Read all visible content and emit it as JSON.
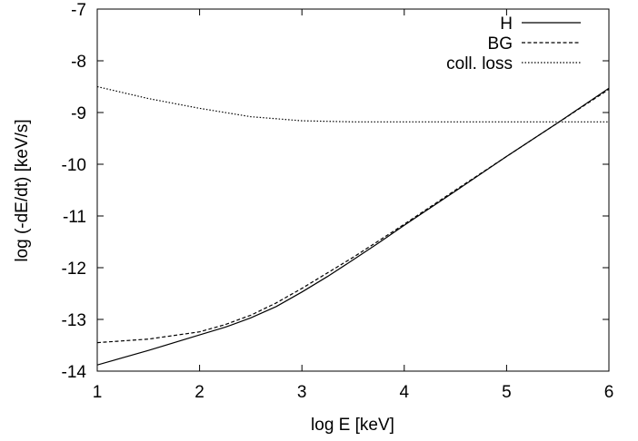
{
  "chart_data": {
    "type": "line",
    "title": "",
    "xlabel": "log E [keV]",
    "ylabel": "log (-dE/dt) [keV/s]",
    "xlim": [
      1,
      6
    ],
    "ylim": [
      -14,
      -7
    ],
    "x_ticks": [
      "1",
      "2",
      "3",
      "4",
      "5",
      "6"
    ],
    "y_ticks": [
      "-7",
      "-8",
      "-9",
      "-10",
      "-11",
      "-12",
      "-13",
      "-14"
    ],
    "grid": false,
    "legend_position": "top-right",
    "series": [
      {
        "name": "H",
        "style": "solid",
        "x": [
          1.0,
          1.5,
          2.0,
          2.25,
          2.5,
          2.75,
          3.0,
          3.25,
          3.5,
          3.75,
          4.0,
          4.5,
          5.0,
          5.5,
          6.0
        ],
        "y": [
          -13.88,
          -13.6,
          -13.3,
          -13.15,
          -12.97,
          -12.75,
          -12.47,
          -12.17,
          -11.85,
          -11.52,
          -11.18,
          -10.52,
          -9.85,
          -9.2,
          -8.53
        ]
      },
      {
        "name": "BG",
        "style": "dashed",
        "x": [
          1.0,
          1.5,
          2.0,
          2.25,
          2.5,
          2.75,
          3.0,
          3.25,
          3.5,
          3.75,
          4.0,
          4.5,
          5.0,
          5.5,
          6.0
        ],
        "y": [
          -13.45,
          -13.38,
          -13.24,
          -13.1,
          -12.92,
          -12.68,
          -12.4,
          -12.1,
          -11.8,
          -11.48,
          -11.16,
          -10.5,
          -9.85,
          -9.2,
          -8.55
        ]
      },
      {
        "name": "coll. loss",
        "style": "dotted",
        "x": [
          1.0,
          1.5,
          2.0,
          2.5,
          3.0,
          3.5,
          4.0,
          4.5,
          5.0,
          5.5,
          6.0
        ],
        "y": [
          -8.5,
          -8.73,
          -8.92,
          -9.08,
          -9.16,
          -9.18,
          -9.18,
          -9.18,
          -9.18,
          -9.18,
          -9.18
        ]
      }
    ]
  }
}
